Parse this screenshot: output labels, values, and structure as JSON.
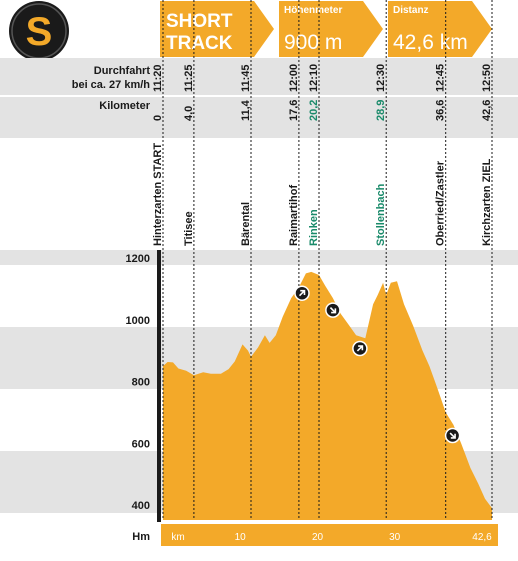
{
  "badge": {
    "letter": "S"
  },
  "header": {
    "track_line1": "SHORT",
    "track_line2": "TRACK",
    "elevation_label": "Höhenmeter",
    "elevation_value": "900 m",
    "distance_label": "Distanz",
    "distance_value": "42,6 km"
  },
  "rows": {
    "time_label_line1": "Durchfahrt",
    "time_label_line2": "bei ca. 27 km/h",
    "km_label": "Kilometer"
  },
  "stations": [
    {
      "name": "Hinterzarten START",
      "km": 0,
      "km_label": "0",
      "time": "11:20",
      "highlight": false
    },
    {
      "name": "Titisee",
      "km": 4.0,
      "km_label": "4,0",
      "time": "11:25",
      "highlight": false
    },
    {
      "name": "Bärental",
      "km": 11.4,
      "km_label": "11,4",
      "time": "11:45",
      "highlight": false
    },
    {
      "name": "Raimartihof",
      "km": 17.6,
      "km_label": "17,6",
      "time": "12:00",
      "highlight": false
    },
    {
      "name": "Rinken",
      "km": 20.2,
      "km_label": "20,2",
      "time": "12:10",
      "highlight": true
    },
    {
      "name": "Stollenbach",
      "km": 28.9,
      "km_label": "28,9",
      "time": "12:30",
      "highlight": true
    },
    {
      "name": "Oberried/Zastler",
      "km": 36.6,
      "km_label": "36,6",
      "time": "12:45",
      "highlight": false
    },
    {
      "name": "Kirchzarten ZIEL",
      "km": 42.6,
      "km_label": "42,6",
      "time": "12:50",
      "highlight": false
    }
  ],
  "chart_data": {
    "type": "area",
    "ylabel": "Hm",
    "xlabel": "km",
    "ylim": [
      380,
      1240
    ],
    "xlim": [
      0,
      42.6
    ],
    "y_ticks": [
      400,
      600,
      800,
      1000,
      1200
    ],
    "x_ticks": [
      {
        "value": 0,
        "label": "km"
      },
      {
        "value": 10,
        "label": "10"
      },
      {
        "value": 20,
        "label": "20"
      },
      {
        "value": 30,
        "label": "30"
      },
      {
        "value": 42.6,
        "label": "42,6"
      }
    ],
    "x": [
      0,
      0.6,
      1.3,
      2.0,
      3.0,
      4.0,
      5.2,
      6.2,
      7.5,
      8.5,
      9.3,
      10.3,
      11.0,
      11.4,
      12.3,
      13.2,
      13.8,
      14.6,
      15.5,
      16.6,
      17.6,
      18.5,
      19.2,
      20.2,
      21.0,
      22.0,
      23.0,
      24.0,
      25.0,
      26.2,
      27.2,
      27.8,
      28.5,
      28.9,
      29.5,
      30.3,
      31.2,
      32.4,
      33.6,
      34.5,
      35.5,
      36.6,
      37.6,
      38.6,
      39.8,
      40.8,
      41.7,
      42.6
    ],
    "y": [
      850,
      863,
      862,
      842,
      835,
      820,
      830,
      825,
      825,
      840,
      865,
      920,
      900,
      880,
      910,
      950,
      925,
      950,
      1010,
      1070,
      1105,
      1150,
      1155,
      1145,
      1110,
      1070,
      1020,
      985,
      950,
      940,
      1050,
      1080,
      1120,
      1080,
      1120,
      1125,
      1050,
      980,
      900,
      850,
      780,
      700,
      660,
      600,
      520,
      470,
      420,
      390
    ],
    "direction_markers": [
      {
        "km": 18.0,
        "direction": "up"
      },
      {
        "km": 22.0,
        "direction": "down"
      },
      {
        "km": 25.5,
        "direction": "up"
      },
      {
        "km": 37.5,
        "direction": "down"
      }
    ],
    "colors": {
      "fill": "#f3a929",
      "fill_dark": "#e09a22",
      "band": "#e3e3e3",
      "highlight_text": "#1a8a6a",
      "axis": "#1a1a1a"
    }
  }
}
